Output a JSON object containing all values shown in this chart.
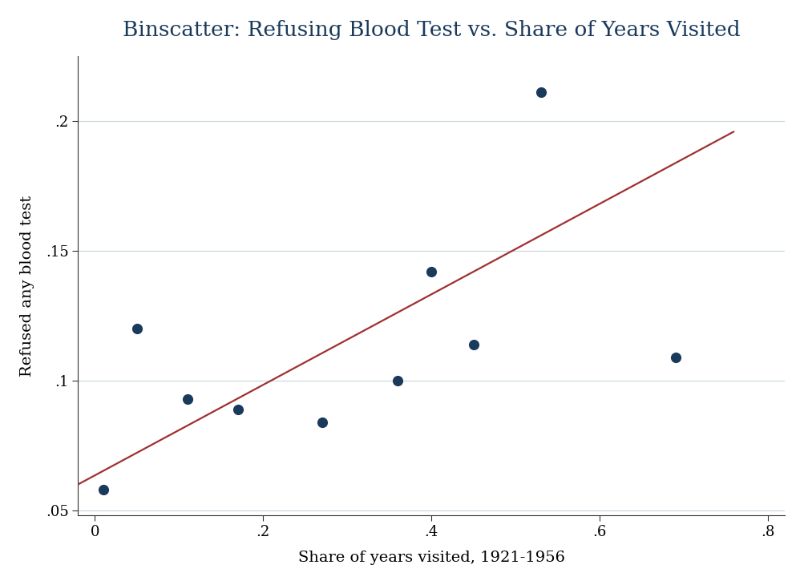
{
  "title": "Binscatter: Refusing Blood Test vs. Share of Years Visited",
  "xlabel": "Share of years visited, 1921-1956",
  "ylabel": "Refused any blood test",
  "scatter_x": [
    0.01,
    0.05,
    0.11,
    0.17,
    0.27,
    0.36,
    0.4,
    0.45,
    0.53,
    0.69
  ],
  "scatter_y": [
    0.058,
    0.12,
    0.093,
    0.089,
    0.084,
    0.1,
    0.142,
    0.114,
    0.211,
    0.109
  ],
  "fit_x": [
    -0.02,
    0.76
  ],
  "fit_y": [
    0.06,
    0.196
  ],
  "dot_color": "#1a3a5c",
  "line_color": "#a03030",
  "xlim": [
    -0.02,
    0.82
  ],
  "ylim": [
    0.048,
    0.225
  ],
  "xticks": [
    0,
    0.2,
    0.4,
    0.6,
    0.8
  ],
  "yticks": [
    0.05,
    0.1,
    0.15,
    0.2
  ],
  "xtick_labels": [
    "0",
    ".2",
    ".4",
    ".6",
    ".8"
  ],
  "ytick_labels": [
    ".05",
    ".1",
    ".15",
    ".2"
  ],
  "title_color": "#1a3a5c",
  "title_fontsize": 19,
  "label_fontsize": 14,
  "tick_fontsize": 13,
  "dot_size": 90,
  "line_width": 1.6,
  "grid_color": "#c8d4dc",
  "bg_color": "#ffffff",
  "spine_color": "#333333"
}
